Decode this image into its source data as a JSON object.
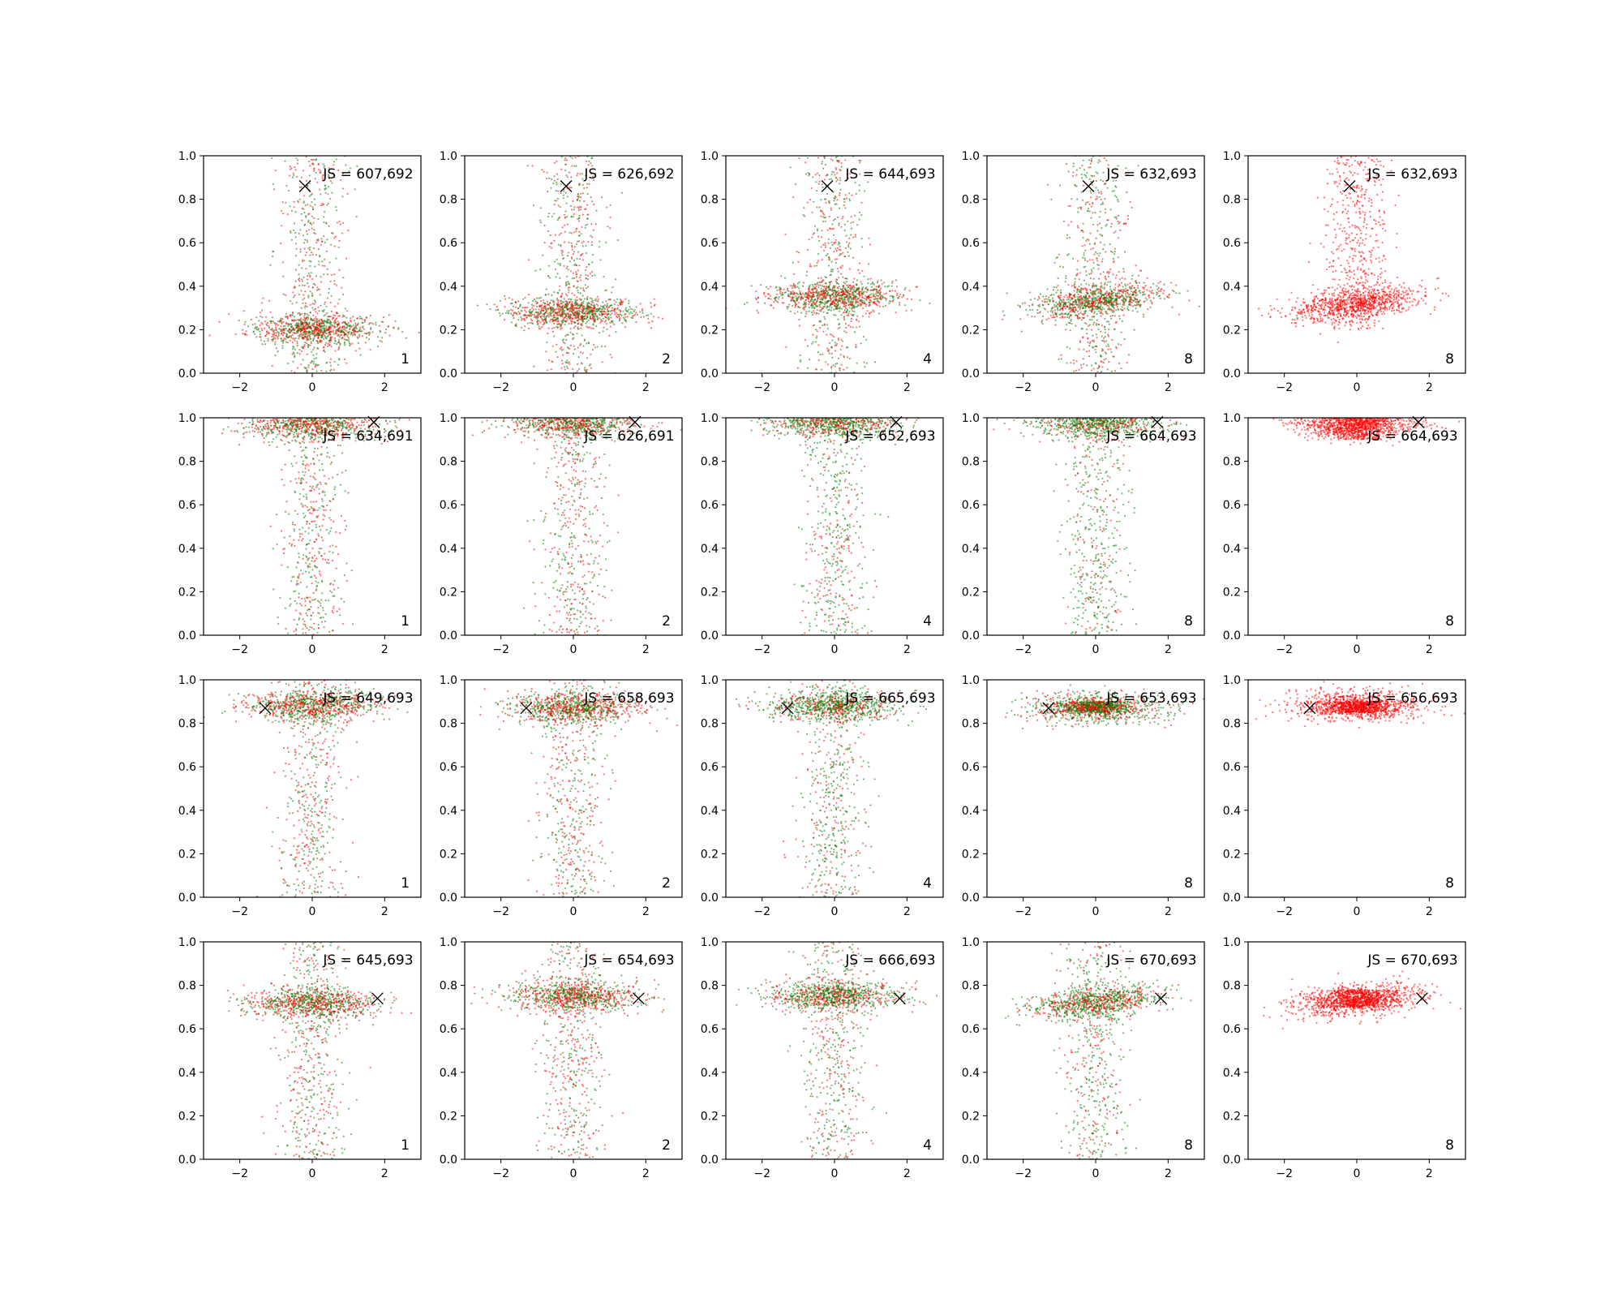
{
  "chart_data": {
    "type": "scatter",
    "layout": {
      "rows": 4,
      "cols": 5
    },
    "xlim": [
      -3,
      3
    ],
    "ylim": [
      0,
      1
    ],
    "xticks": [
      -2,
      0,
      2
    ],
    "yticks": [
      0.0,
      0.2,
      0.4,
      0.6,
      0.8,
      1.0
    ],
    "ytick_labels": [
      "0.0",
      "0.2",
      "0.4",
      "0.6",
      "0.8",
      "1.0"
    ],
    "series_colors": {
      "red": "#ff0000",
      "green": "#008000",
      "marker": "#000000"
    },
    "panels": [
      {
        "row": 0,
        "col": 0,
        "js": "JS = 607,692",
        "k": "1",
        "marker": [
          -0.2,
          0.86
        ],
        "cluster_y": 0.2,
        "spread_low": 0.0,
        "spread_high": 1.0,
        "red_ratio": 0.5,
        "green_ratio": 0.5,
        "tilt": 0
      },
      {
        "row": 0,
        "col": 1,
        "js": "JS = 626,692",
        "k": "2",
        "marker": [
          -0.2,
          0.86
        ],
        "cluster_y": 0.28,
        "spread_low": 0.0,
        "spread_high": 1.0,
        "red_ratio": 0.5,
        "green_ratio": 0.5,
        "tilt": 0
      },
      {
        "row": 0,
        "col": 2,
        "js": "JS = 644,693",
        "k": "4",
        "marker": [
          -0.2,
          0.86
        ],
        "cluster_y": 0.35,
        "spread_low": 0.0,
        "spread_high": 1.0,
        "red_ratio": 0.5,
        "green_ratio": 0.5,
        "tilt": 0
      },
      {
        "row": 0,
        "col": 3,
        "js": "JS = 632,693",
        "k": "8",
        "marker": [
          -0.2,
          0.86
        ],
        "cluster_y": 0.33,
        "spread_low": 0.0,
        "spread_high": 1.0,
        "red_ratio": 0.45,
        "green_ratio": 0.55,
        "tilt": 0.02
      },
      {
        "row": 0,
        "col": 4,
        "js": "JS = 632,693",
        "k": "8",
        "marker": [
          -0.2,
          0.86
        ],
        "cluster_y": 0.32,
        "spread_low": 0.2,
        "spread_high": 1.0,
        "red_ratio": 1.0,
        "green_ratio": 0.0,
        "tilt": 0.02
      },
      {
        "row": 1,
        "col": 0,
        "js": "JS = 634,691",
        "k": "1",
        "marker": [
          1.7,
          0.98
        ],
        "cluster_y": 0.97,
        "spread_low": 0.0,
        "spread_high": 1.0,
        "red_ratio": 0.5,
        "green_ratio": 0.5,
        "tilt": 0
      },
      {
        "row": 1,
        "col": 1,
        "js": "JS = 626,691",
        "k": "2",
        "marker": [
          1.7,
          0.98
        ],
        "cluster_y": 0.98,
        "spread_low": 0.0,
        "spread_high": 1.0,
        "red_ratio": 0.5,
        "green_ratio": 0.5,
        "tilt": 0
      },
      {
        "row": 1,
        "col": 2,
        "js": "JS = 652,693",
        "k": "4",
        "marker": [
          1.7,
          0.98
        ],
        "cluster_y": 0.98,
        "spread_low": 0.0,
        "spread_high": 1.0,
        "red_ratio": 0.35,
        "green_ratio": 0.65,
        "tilt": 0
      },
      {
        "row": 1,
        "col": 3,
        "js": "JS = 664,693",
        "k": "8",
        "marker": [
          1.7,
          0.98
        ],
        "cluster_y": 0.98,
        "spread_low": 0.0,
        "spread_high": 1.0,
        "red_ratio": 0.3,
        "green_ratio": 0.7,
        "tilt": 0
      },
      {
        "row": 1,
        "col": 4,
        "js": "JS = 664,693",
        "k": "8",
        "marker": [
          1.7,
          0.98
        ],
        "cluster_y": 0.98,
        "spread_low": 0.9,
        "spread_high": 1.0,
        "red_ratio": 1.0,
        "green_ratio": 0.0,
        "tilt": 0
      },
      {
        "row": 2,
        "col": 0,
        "js": "JS = 649,693",
        "k": "1",
        "marker": [
          -1.3,
          0.87
        ],
        "cluster_y": 0.88,
        "spread_low": 0.0,
        "spread_high": 1.0,
        "red_ratio": 0.5,
        "green_ratio": 0.5,
        "tilt": 0
      },
      {
        "row": 2,
        "col": 1,
        "js": "JS = 658,693",
        "k": "2",
        "marker": [
          -1.3,
          0.87
        ],
        "cluster_y": 0.87,
        "spread_low": 0.0,
        "spread_high": 1.0,
        "red_ratio": 0.5,
        "green_ratio": 0.5,
        "tilt": 0
      },
      {
        "row": 2,
        "col": 2,
        "js": "JS = 665,693",
        "k": "4",
        "marker": [
          -1.3,
          0.87
        ],
        "cluster_y": 0.88,
        "spread_low": 0.0,
        "spread_high": 1.0,
        "red_ratio": 0.35,
        "green_ratio": 0.65,
        "tilt": 0
      },
      {
        "row": 2,
        "col": 3,
        "js": "JS = 653,693",
        "k": "8",
        "marker": [
          -1.3,
          0.87
        ],
        "cluster_y": 0.87,
        "spread_low": 0.85,
        "spread_high": 0.9,
        "red_ratio": 0.4,
        "green_ratio": 0.6,
        "tilt": 0
      },
      {
        "row": 2,
        "col": 4,
        "js": "JS = 656,693",
        "k": "8",
        "marker": [
          -1.3,
          0.87
        ],
        "cluster_y": 0.88,
        "spread_low": 0.85,
        "spread_high": 0.9,
        "red_ratio": 1.0,
        "green_ratio": 0.0,
        "tilt": 0
      },
      {
        "row": 3,
        "col": 0,
        "js": "JS = 645,693",
        "k": "1",
        "marker": [
          1.8,
          0.74
        ],
        "cluster_y": 0.72,
        "spread_low": 0.0,
        "spread_high": 1.0,
        "red_ratio": 0.5,
        "green_ratio": 0.5,
        "tilt": 0
      },
      {
        "row": 3,
        "col": 1,
        "js": "JS = 654,693",
        "k": "2",
        "marker": [
          1.8,
          0.74
        ],
        "cluster_y": 0.75,
        "spread_low": 0.0,
        "spread_high": 1.0,
        "red_ratio": 0.5,
        "green_ratio": 0.5,
        "tilt": 0
      },
      {
        "row": 3,
        "col": 2,
        "js": "JS = 666,693",
        "k": "4",
        "marker": [
          1.8,
          0.74
        ],
        "cluster_y": 0.75,
        "spread_low": 0.0,
        "spread_high": 1.0,
        "red_ratio": 0.4,
        "green_ratio": 0.6,
        "tilt": 0
      },
      {
        "row": 3,
        "col": 3,
        "js": "JS = 670,693",
        "k": "8",
        "marker": [
          1.8,
          0.74
        ],
        "cluster_y": 0.72,
        "spread_low": 0.0,
        "spread_high": 1.0,
        "red_ratio": 0.4,
        "green_ratio": 0.6,
        "tilt": 0.015
      },
      {
        "row": 3,
        "col": 4,
        "js": "JS = 670,693",
        "k": "8",
        "marker": [
          1.8,
          0.74
        ],
        "cluster_y": 0.73,
        "spread_low": 0.7,
        "spread_high": 0.78,
        "red_ratio": 1.0,
        "green_ratio": 0.0,
        "tilt": 0.015
      }
    ]
  }
}
